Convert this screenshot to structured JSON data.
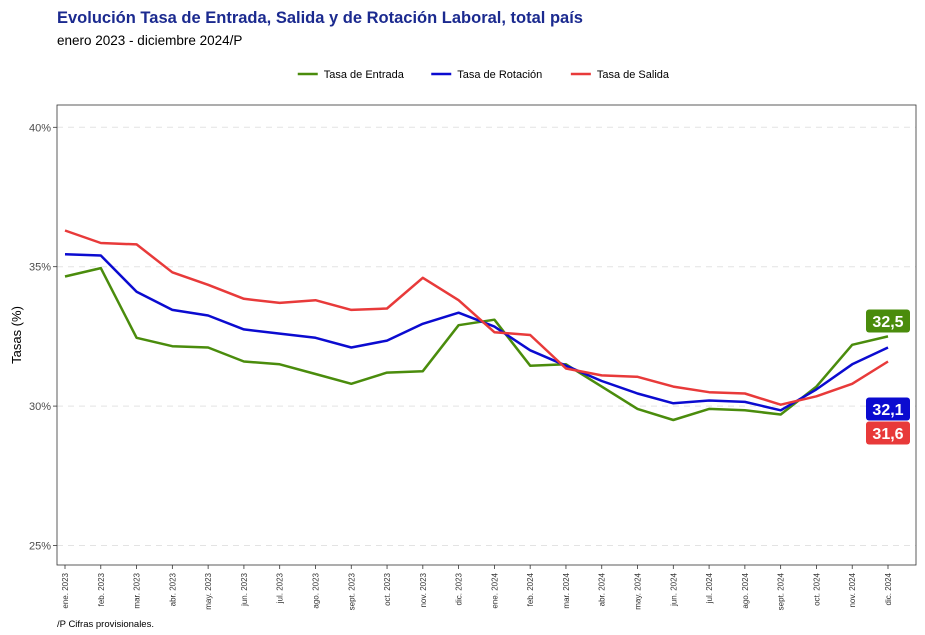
{
  "title": "Evolución Tasa de Entrada, Salida y de Rotación Laboral, total país",
  "subtitle": "enero 2023 - diciembre 2024/P",
  "footnote": "/P Cifras provisionales.",
  "chart_data": {
    "type": "line",
    "title": "Evolución Tasa de Entrada, Salida y de Rotación Laboral, total país",
    "subtitle": "enero 2023 - diciembre 2024/P",
    "xlabel": "",
    "ylabel": "Tasas (%)",
    "ylim": [
      24.3,
      40.8
    ],
    "yticks": [
      25,
      30,
      35,
      40
    ],
    "ytick_labels": [
      "25%",
      "30%",
      "35%",
      "40%"
    ],
    "grid": "horizontal dashed",
    "legend_position": "top",
    "categories": [
      "ene. 2023",
      "feb. 2023",
      "mar. 2023",
      "abr. 2023",
      "may. 2023",
      "jun. 2023",
      "jul. 2023",
      "ago. 2023",
      "sept. 2023",
      "oct. 2023",
      "nov. 2023",
      "dic. 2023",
      "ene. 2024",
      "feb. 2024",
      "mar. 2024",
      "abr. 2024",
      "may. 2024",
      "jun. 2024",
      "jul. 2024",
      "ago. 2024",
      "sept. 2024",
      "oct. 2024",
      "nov. 2024",
      "dic. 2024"
    ],
    "series": [
      {
        "name": "Tasa de Entrada",
        "color": "#4a8c0c",
        "end_label": "32,5",
        "values": [
          34.65,
          34.95,
          32.45,
          32.15,
          32.1,
          31.6,
          31.5,
          31.15,
          30.8,
          31.2,
          31.25,
          32.9,
          33.1,
          31.45,
          31.5,
          30.7,
          29.9,
          29.5,
          29.9,
          29.85,
          29.7,
          30.7,
          32.2,
          32.5
        ]
      },
      {
        "name": "Tasa de Rotación",
        "color": "#0b0bd0",
        "end_label": "32,1",
        "values": [
          35.45,
          35.4,
          34.1,
          33.45,
          33.25,
          32.75,
          32.6,
          32.45,
          32.1,
          32.35,
          32.95,
          33.35,
          32.85,
          32.0,
          31.45,
          30.9,
          30.45,
          30.1,
          30.2,
          30.15,
          29.85,
          30.6,
          31.5,
          32.1
        ]
      },
      {
        "name": "Tasa de Salida",
        "color": "#e83a3a",
        "end_label": "31,6",
        "values": [
          36.3,
          35.85,
          35.8,
          34.8,
          34.35,
          33.85,
          33.7,
          33.8,
          33.45,
          33.5,
          34.6,
          33.8,
          32.65,
          32.55,
          31.35,
          31.1,
          31.05,
          30.7,
          30.5,
          30.45,
          30.05,
          30.35,
          30.8,
          31.6
        ]
      }
    ]
  }
}
